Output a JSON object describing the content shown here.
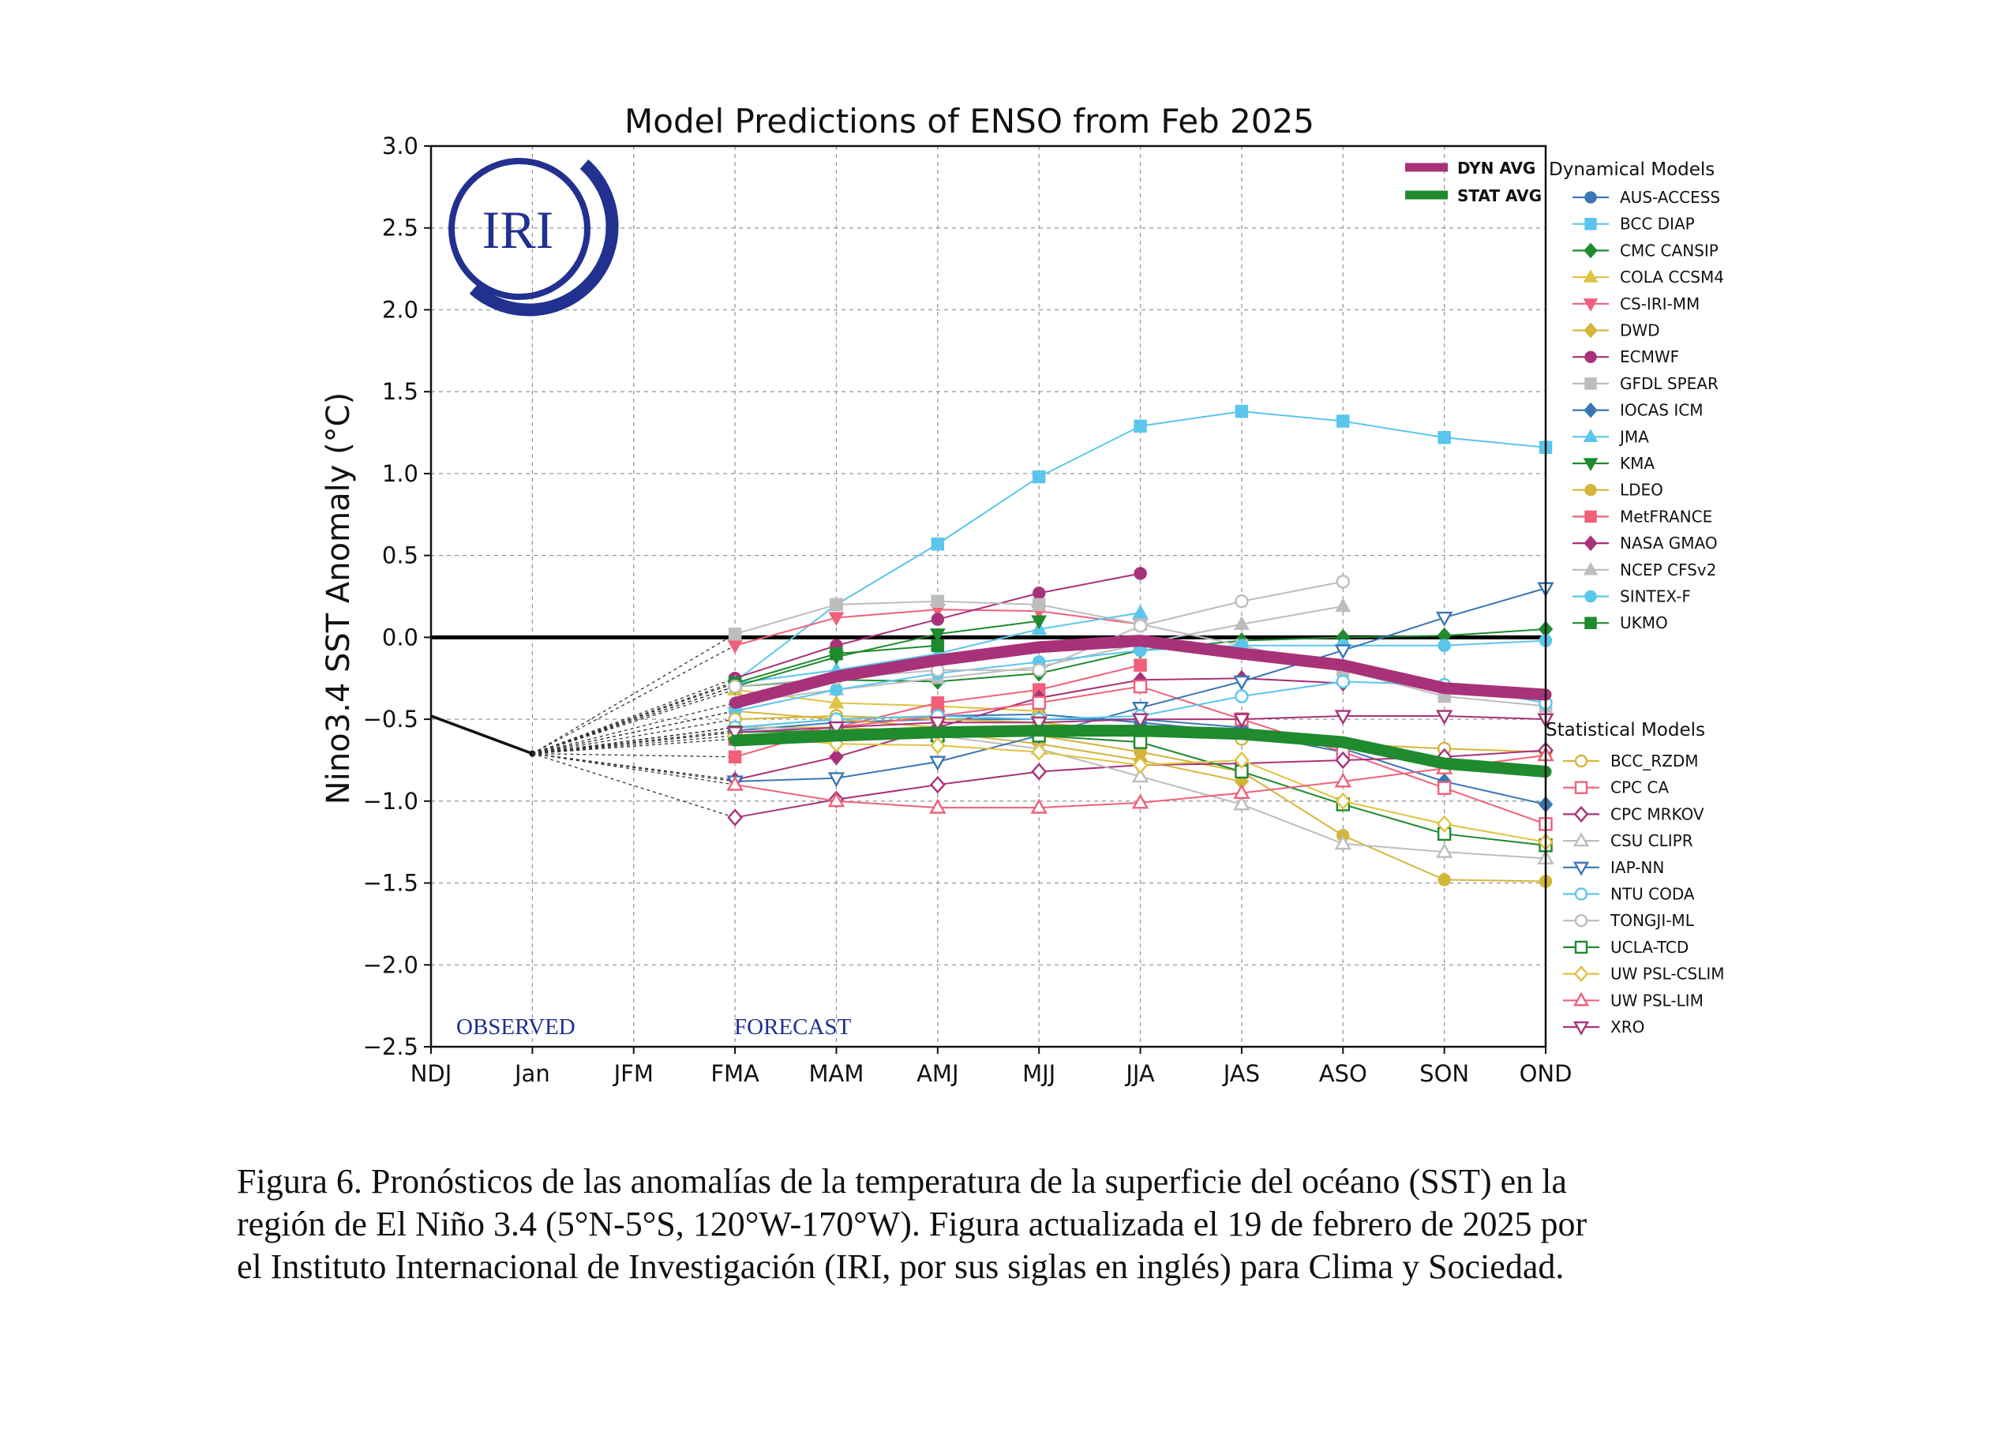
{
  "chart_data": {
    "type": "line",
    "title": "Model Predictions of ENSO from Feb 2025",
    "ylabel": "Nino3.4 SST Anomaly (°C)",
    "xlabel": "",
    "ylim": [
      -2.5,
      3.0
    ],
    "yticks": [
      3.0,
      2.5,
      2.0,
      1.5,
      1.0,
      0.5,
      0.0,
      -0.5,
      -1.0,
      -1.5,
      -2.0,
      -2.5
    ],
    "ytick_labels": [
      "3.0",
      "2.5",
      "2.0",
      "1.5",
      "1.0",
      "0.5",
      "0.0",
      "−0.5",
      "−1.0",
      "−1.5",
      "−2.0",
      "−2.5"
    ],
    "categories": [
      "NDJ",
      "Jan",
      "JFM",
      "FMA",
      "MAM",
      "AMJ",
      "MJJ",
      "JJA",
      "JAS",
      "ASO",
      "SON",
      "OND"
    ],
    "grid": true,
    "observed_label": "OBSERVED",
    "forecast_label": "FORECAST",
    "logo_text": "IRI",
    "observed": [
      -0.48,
      -0.71
    ],
    "average_legend": [
      {
        "name": "DYN AVG",
        "color": "#a83279"
      },
      {
        "name": "STAT AVG",
        "color": "#1f8a2e"
      }
    ],
    "dynamical_title": "Dynamical Models",
    "statistical_title": "Statistical Models",
    "series": [
      {
        "name": "AUS-ACCESS",
        "group": "dyn",
        "color": "#3a76b4",
        "marker": "circle",
        "filled": true,
        "values": [
          null,
          null,
          null,
          -0.55,
          -0.5,
          -0.48,
          -0.47,
          -0.52,
          -0.58,
          -0.7,
          null,
          null
        ]
      },
      {
        "name": "BCC DIAP",
        "group": "dyn",
        "color": "#5bc6ec",
        "marker": "square",
        "filled": true,
        "values": [
          null,
          null,
          null,
          -0.27,
          0.2,
          0.57,
          0.98,
          1.29,
          1.38,
          1.32,
          1.22,
          1.16
        ]
      },
      {
        "name": "CMC CANSIP",
        "group": "dyn",
        "color": "#1f8a2e",
        "marker": "diamond",
        "filled": true,
        "values": [
          null,
          null,
          null,
          -0.3,
          -0.26,
          -0.27,
          -0.22,
          -0.08,
          -0.02,
          0.0,
          0.01,
          0.05
        ]
      },
      {
        "name": "COLA CCSM4",
        "group": "dyn",
        "color": "#e0c341",
        "marker": "triangle-up",
        "filled": true,
        "values": [
          null,
          null,
          null,
          -0.32,
          -0.4,
          -0.42,
          -0.45,
          null,
          null,
          null,
          null,
          null
        ]
      },
      {
        "name": "CS-IRI-MM",
        "group": "dyn",
        "color": "#f0607a",
        "marker": "triangle-down",
        "filled": true,
        "values": [
          null,
          null,
          null,
          -0.05,
          0.12,
          0.17,
          0.16,
          0.08,
          null,
          null,
          null,
          null
        ]
      },
      {
        "name": "DWD",
        "group": "dyn",
        "color": "#d4b63a",
        "marker": "diamond",
        "filled": true,
        "values": [
          null,
          null,
          null,
          -0.55,
          -0.55,
          -0.58,
          -0.65,
          -0.75,
          -0.88,
          null,
          null,
          null
        ]
      },
      {
        "name": "ECMWF",
        "group": "dyn",
        "color": "#a8327a",
        "marker": "circle",
        "filled": true,
        "values": [
          null,
          null,
          null,
          -0.25,
          -0.05,
          0.11,
          0.27,
          0.39,
          null,
          null,
          null,
          null
        ]
      },
      {
        "name": "GFDL SPEAR",
        "group": "dyn",
        "color": "#bdbdbd",
        "marker": "square",
        "filled": true,
        "values": [
          null,
          null,
          null,
          0.02,
          0.2,
          0.22,
          0.2,
          0.08,
          -0.05,
          -0.2,
          -0.36,
          -0.42
        ]
      },
      {
        "name": "IOCAS ICM",
        "group": "dyn",
        "color": "#3a76b4",
        "marker": "diamond",
        "filled": true,
        "values": [
          null,
          null,
          null,
          -0.57,
          -0.52,
          -0.5,
          -0.5,
          -0.5,
          -0.55,
          -0.68,
          -0.88,
          -1.02
        ]
      },
      {
        "name": "JMA",
        "group": "dyn",
        "color": "#5bc6ec",
        "marker": "triangle-up",
        "filled": true,
        "values": [
          null,
          null,
          null,
          -0.28,
          -0.2,
          -0.1,
          0.05,
          0.15,
          null,
          null,
          null,
          null
        ]
      },
      {
        "name": "KMA",
        "group": "dyn",
        "color": "#1f8a2e",
        "marker": "triangle-down",
        "filled": true,
        "values": [
          null,
          null,
          null,
          -0.3,
          -0.12,
          0.02,
          0.1,
          null,
          null,
          null,
          null,
          null
        ]
      },
      {
        "name": "LDEO",
        "group": "dyn",
        "color": "#d4b63a",
        "marker": "circle",
        "filled": true,
        "values": [
          null,
          null,
          null,
          -0.45,
          -0.5,
          -0.55,
          -0.6,
          -0.7,
          -0.82,
          -1.21,
          -1.48,
          -1.49
        ]
      },
      {
        "name": "MetFRANCE",
        "group": "dyn",
        "color": "#f0607a",
        "marker": "square",
        "filled": true,
        "values": [
          null,
          null,
          null,
          -0.73,
          -0.55,
          -0.4,
          -0.32,
          -0.17,
          null,
          null,
          null,
          null
        ]
      },
      {
        "name": "NASA GMAO",
        "group": "dyn",
        "color": "#a8327a",
        "marker": "diamond",
        "filled": true,
        "values": [
          null,
          null,
          null,
          -0.87,
          -0.73,
          -0.55,
          -0.37,
          -0.26,
          -0.25,
          -0.28,
          null,
          null
        ]
      },
      {
        "name": "NCEP CFSv2",
        "group": "dyn",
        "color": "#bdbdbd",
        "marker": "triangle-up",
        "filled": true,
        "values": [
          null,
          null,
          null,
          -0.4,
          -0.32,
          -0.25,
          -0.18,
          -0.04,
          0.08,
          0.19,
          null,
          null
        ]
      },
      {
        "name": "SINTEX-F",
        "group": "dyn",
        "color": "#5bc6ec",
        "marker": "circle",
        "filled": true,
        "values": [
          null,
          null,
          null,
          -0.45,
          -0.32,
          -0.22,
          -0.15,
          -0.08,
          -0.05,
          -0.05,
          -0.05,
          -0.02
        ]
      },
      {
        "name": "UKMO",
        "group": "dyn",
        "color": "#1f8a2e",
        "marker": "square",
        "filled": true,
        "values": [
          null,
          null,
          null,
          -0.28,
          -0.1,
          -0.05,
          null,
          null,
          null,
          null,
          null,
          null
        ]
      },
      {
        "name": "BCC_RZDM",
        "group": "stat",
        "color": "#d4b63a",
        "marker": "circle",
        "filled": false,
        "values": [
          null,
          null,
          null,
          -0.5,
          -0.48,
          -0.5,
          -0.52,
          -0.58,
          -0.62,
          -0.65,
          -0.68,
          -0.7
        ]
      },
      {
        "name": "CPC CA",
        "group": "stat",
        "color": "#f0607a",
        "marker": "square",
        "filled": false,
        "values": [
          null,
          null,
          null,
          -0.62,
          -0.55,
          -0.48,
          -0.4,
          -0.3,
          -0.5,
          -0.7,
          -0.92,
          -1.14
        ]
      },
      {
        "name": "CPC MRKOV",
        "group": "stat",
        "color": "#a8327a",
        "marker": "diamond",
        "filled": false,
        "values": [
          null,
          null,
          null,
          -1.1,
          -0.99,
          -0.9,
          -0.82,
          -0.78,
          -0.77,
          -0.75,
          -0.73,
          -0.69
        ]
      },
      {
        "name": "CSU CLIPR",
        "group": "stat",
        "color": "#bdbdbd",
        "marker": "triangle-up",
        "filled": false,
        "values": [
          null,
          null,
          null,
          -0.55,
          -0.56,
          -0.6,
          -0.68,
          -0.85,
          -1.02,
          -1.26,
          -1.31,
          -1.35
        ]
      },
      {
        "name": "IAP-NN",
        "group": "stat",
        "color": "#3a76b4",
        "marker": "triangle-down",
        "filled": false,
        "values": [
          null,
          null,
          null,
          -0.88,
          -0.86,
          -0.76,
          -0.6,
          -0.43,
          -0.27,
          -0.08,
          0.12,
          0.3
        ]
      },
      {
        "name": "NTU CODA",
        "group": "stat",
        "color": "#5bc6ec",
        "marker": "circle",
        "filled": false,
        "values": [
          null,
          null,
          null,
          -0.55,
          -0.5,
          -0.48,
          -0.5,
          -0.48,
          -0.36,
          -0.27,
          -0.29,
          -0.4
        ]
      },
      {
        "name": "TONGJI-ML",
        "group": "stat",
        "color": "#bdbdbd",
        "marker": "circle",
        "filled": false,
        "values": [
          null,
          null,
          null,
          -0.3,
          -0.25,
          -0.2,
          -0.2,
          0.07,
          0.22,
          0.34,
          null,
          null
        ]
      },
      {
        "name": "UCLA-TCD",
        "group": "stat",
        "color": "#1f8a2e",
        "marker": "square",
        "filled": false,
        "values": [
          null,
          null,
          null,
          -0.58,
          -0.57,
          -0.6,
          -0.6,
          -0.64,
          -0.82,
          -1.02,
          -1.2,
          -1.27
        ]
      },
      {
        "name": "UW PSL-CSLIM",
        "group": "stat",
        "color": "#e0c341",
        "marker": "diamond",
        "filled": false,
        "values": [
          null,
          null,
          null,
          -0.6,
          -0.65,
          -0.66,
          -0.7,
          -0.78,
          -0.75,
          -1.0,
          -1.14,
          -1.25
        ]
      },
      {
        "name": "UW PSL-LIM",
        "group": "stat",
        "color": "#f0607a",
        "marker": "triangle-up",
        "filled": false,
        "values": [
          null,
          null,
          null,
          -0.9,
          -1.0,
          -1.04,
          -1.04,
          -1.01,
          -0.95,
          -0.88,
          -0.8,
          -0.72
        ]
      },
      {
        "name": "XRO",
        "group": "stat",
        "color": "#a8327a",
        "marker": "triangle-down",
        "filled": false,
        "values": [
          null,
          null,
          null,
          -0.58,
          -0.55,
          -0.52,
          -0.52,
          -0.5,
          -0.5,
          -0.48,
          -0.48,
          -0.5
        ]
      }
    ],
    "averages": [
      {
        "name": "DYN AVG",
        "color": "#a83279",
        "values": [
          null,
          null,
          null,
          -0.4,
          -0.24,
          -0.14,
          -0.06,
          -0.02,
          -0.1,
          -0.17,
          -0.31,
          -0.35
        ]
      },
      {
        "name": "STAT AVG",
        "color": "#1f8a2e",
        "values": [
          null,
          null,
          null,
          -0.63,
          -0.6,
          -0.58,
          -0.57,
          -0.57,
          -0.59,
          -0.64,
          -0.77,
          -0.82
        ]
      }
    ]
  },
  "caption": {
    "line1": "Figura 6. Pronósticos de las anomalías de la temperatura de la superficie del océano (SST) en la",
    "line2": "región de El Niño 3.4 (5°N-5°S, 120°W-170°W). Figura actualizada el 19 de febrero de 2025 por",
    "line3": "el Instituto Internacional de Investigación (IRI, por sus siglas en inglés) para Clima y Sociedad."
  }
}
